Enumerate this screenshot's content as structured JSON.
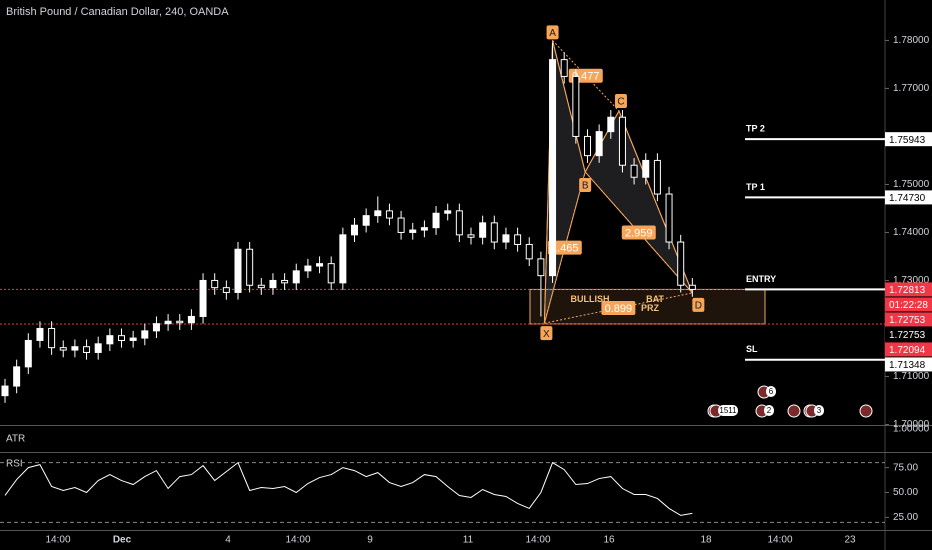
{
  "chart_data": {
    "type": "candlestick",
    "title": "British Pound / Canadian Dollar, 240, OANDA",
    "ylim": [
      1.69989,
      1.78842
    ],
    "yticks": [
      {
        "value": 1.78,
        "label": "1.78000"
      },
      {
        "value": 1.77,
        "label": "1.77000"
      },
      {
        "value": 1.75,
        "label": "1.75000"
      },
      {
        "value": 1.74,
        "label": "1.74000"
      },
      {
        "value": 1.73,
        "label": "1.73000"
      },
      {
        "value": 1.71,
        "label": "1.71000"
      },
      {
        "value": 1.7,
        "label": "1.70000"
      }
    ],
    "up_color": "#ffffff",
    "down_color": "#000000",
    "wick_color": "#ffffff",
    "open": [
      1.706,
      1.708,
      1.712,
      1.7175,
      1.72,
      1.716,
      1.7155,
      1.7162,
      1.715,
      1.7168,
      1.7185,
      1.7175,
      1.718,
      1.7195,
      1.721,
      1.7215,
      1.7212,
      1.7225,
      1.73,
      1.7285,
      1.7275,
      1.7365,
      1.729,
      1.7285,
      1.73,
      1.7295,
      1.732,
      1.733,
      1.7335,
      1.7295,
      1.7395,
      1.7415,
      1.7435,
      1.7445,
      1.743,
      1.74,
      1.7405,
      1.741,
      1.744,
      1.7445,
      1.7395,
      1.739,
      1.742,
      1.738,
      1.7395,
      1.7375,
      1.7345,
      1.731,
      1.776,
      1.7725,
      1.76,
      1.756,
      1.761,
      1.764,
      1.754,
      1.7515,
      1.755,
      1.748,
      1.738,
      1.729
    ],
    "high": [
      1.7095,
      1.7135,
      1.719,
      1.7215,
      1.7215,
      1.7175,
      1.7177,
      1.7177,
      1.7183,
      1.72,
      1.72,
      1.7195,
      1.721,
      1.7225,
      1.723,
      1.723,
      1.724,
      1.7315,
      1.7315,
      1.73,
      1.738,
      1.738,
      1.7305,
      1.7315,
      1.7315,
      1.7335,
      1.7345,
      1.735,
      1.735,
      1.741,
      1.743,
      1.745,
      1.7475,
      1.746,
      1.7445,
      1.742,
      1.7425,
      1.7455,
      1.746,
      1.746,
      1.741,
      1.7435,
      1.7435,
      1.741,
      1.741,
      1.739,
      1.736,
      1.7795,
      1.7775,
      1.774,
      1.7615,
      1.7625,
      1.7655,
      1.7655,
      1.7555,
      1.7565,
      1.7565,
      1.7495,
      1.7395,
      1.7305
    ],
    "low": [
      1.7045,
      1.7065,
      1.7105,
      1.716,
      1.7145,
      1.714,
      1.714,
      1.7135,
      1.7135,
      1.7153,
      1.716,
      1.716,
      1.7165,
      1.718,
      1.7195,
      1.7197,
      1.7197,
      1.721,
      1.727,
      1.726,
      1.726,
      1.7275,
      1.727,
      1.727,
      1.728,
      1.728,
      1.7305,
      1.7315,
      1.728,
      1.728,
      1.738,
      1.74,
      1.742,
      1.7415,
      1.7385,
      1.7385,
      1.739,
      1.7395,
      1.7425,
      1.738,
      1.7375,
      1.7375,
      1.7365,
      1.7365,
      1.736,
      1.733,
      1.7225,
      1.7295,
      1.771,
      1.7585,
      1.7545,
      1.7545,
      1.7595,
      1.7525,
      1.75,
      1.75,
      1.7465,
      1.7365,
      1.7275,
      1.7266
    ],
    "close": [
      1.708,
      1.712,
      1.7175,
      1.72,
      1.716,
      1.7155,
      1.7162,
      1.715,
      1.7168,
      1.7185,
      1.7175,
      1.718,
      1.7195,
      1.721,
      1.7215,
      1.7212,
      1.7225,
      1.73,
      1.7285,
      1.7275,
      1.7365,
      1.729,
      1.7285,
      1.73,
      1.7295,
      1.732,
      1.733,
      1.7335,
      1.7295,
      1.7395,
      1.7415,
      1.7435,
      1.7445,
      1.743,
      1.74,
      1.7405,
      1.741,
      1.744,
      1.7445,
      1.7395,
      1.739,
      1.742,
      1.738,
      1.7395,
      1.7375,
      1.7345,
      1.731,
      1.776,
      1.7725,
      1.76,
      1.756,
      1.761,
      1.764,
      1.754,
      1.7515,
      1.755,
      1.748,
      1.738,
      1.729,
      1.72813
    ],
    "x_axis_labels": [
      "14:00",
      "Dec",
      "4",
      "14:00",
      "9",
      "11",
      "14:00",
      "16",
      "18",
      "14:00",
      "23"
    ],
    "pattern": {
      "color": "#f6a65a",
      "points": [
        {
          "label": "X",
          "x": 46.3,
          "price": 1.7211
        },
        {
          "label": "A",
          "x": 47,
          "price": 1.78
        },
        {
          "label": "B",
          "x": 49.8,
          "price": 1.7526
        },
        {
          "label": "C",
          "x": 52.7,
          "price": 1.7653
        },
        {
          "label": "D",
          "x": 59,
          "price": 1.7274
        }
      ],
      "ratios": [
        {
          "from": "A",
          "to": "C",
          "label": "0.477"
        },
        {
          "from": "X",
          "to": "B",
          "label": "1.465"
        },
        {
          "from": "B",
          "to": "D",
          "label": "2.959"
        },
        {
          "from": "X",
          "to": "D",
          "label": "0.899"
        }
      ],
      "texts": [
        "BULLISH",
        "BAT",
        "PRZ"
      ]
    },
    "alert_lines": [
      1.72813,
      1.72094
    ],
    "alert_color": "#f23645",
    "levels": [
      {
        "name": "TP 2",
        "value": 1.75943
      },
      {
        "name": "TP 1",
        "value": 1.7473
      },
      {
        "name": "ENTRY",
        "value": 1.72813
      },
      {
        "name": "SL",
        "value": 1.71348
      }
    ],
    "price_tags": [
      {
        "value": 1.75943,
        "label": "1.75943",
        "color": "#ffffff"
      },
      {
        "value": 1.7473,
        "label": "1.74730",
        "color": "#ffffff"
      },
      {
        "value": 1.72813,
        "label": "1.72813",
        "color": "#f23645"
      },
      {
        "label": "01:22:28",
        "color": "#f23645"
      },
      {
        "value": 1.72753,
        "label": "1.72753",
        "color": "#f23645"
      },
      {
        "value": 1.72753,
        "label": "1.72753",
        "color": "#000000"
      },
      {
        "value": 1.72094,
        "label": "1.72094",
        "color": "#f23645"
      },
      {
        "value": 1.71348,
        "label": "1.71348",
        "color": "#ffffff"
      }
    ],
    "events": [
      "1511",
      "2",
      "6",
      "3"
    ],
    "atr": {
      "title": "ATR",
      "tick": {
        "value": 1,
        "label": "1.00000"
      }
    },
    "rsi": {
      "title": "RSI",
      "color": "#ffffff",
      "ylim": [
        12.3,
        90.7
      ],
      "yticks": [
        {
          "value": 75,
          "label": "75.00"
        },
        {
          "value": 50,
          "label": "50.00"
        },
        {
          "value": 25,
          "label": "25.00"
        }
      ],
      "bands": [
        80,
        20
      ],
      "values": [
        47,
        63,
        75,
        78,
        56,
        52,
        55,
        50,
        62,
        68,
        62,
        58,
        66,
        72,
        54,
        66,
        68,
        77,
        62,
        71,
        80,
        52,
        55,
        54,
        56,
        50,
        59,
        65,
        68,
        75,
        72,
        66,
        70,
        60,
        56,
        60,
        68,
        66,
        56,
        47,
        45,
        53,
        48,
        46,
        39,
        34,
        50,
        80,
        73,
        58,
        59,
        64,
        66,
        54,
        48,
        48,
        44,
        34,
        27,
        29
      ]
    }
  }
}
